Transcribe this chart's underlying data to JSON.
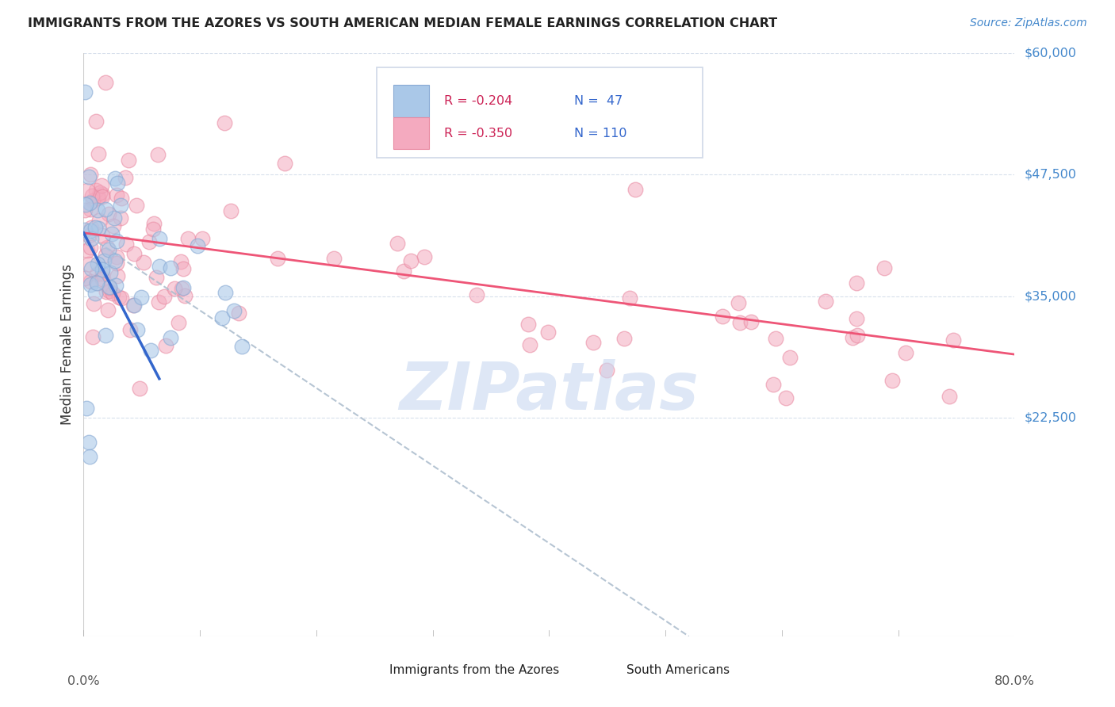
{
  "title": "IMMIGRANTS FROM THE AZORES VS SOUTH AMERICAN MEDIAN FEMALE EARNINGS CORRELATION CHART",
  "source": "Source: ZipAtlas.com",
  "ylabel": "Median Female Earnings",
  "yticks": [
    0,
    22500,
    35000,
    47500,
    60000
  ],
  "ytick_labels": [
    "",
    "$22,500",
    "$35,000",
    "$47,500",
    "$60,000"
  ],
  "xmin": 0.0,
  "xmax": 80.0,
  "ymin": 0,
  "ymax": 60000,
  "azores_fill": "#aac8e8",
  "azores_edge": "#88aad4",
  "south_fill": "#f4aabf",
  "south_edge": "#e888a0",
  "grid_color": "#d8e0ec",
  "trend_blue": "#3366cc",
  "trend_pink": "#ee5577",
  "trend_gray": "#aabbcc",
  "title_color": "#222222",
  "axis_label_color": "#4488cc",
  "watermark_text": "ZIPatlas",
  "watermark_color": "#c8d8f0",
  "legend_r1": "R = -0.204",
  "legend_n1": "N =  47",
  "legend_r2": "R = -0.350",
  "legend_n2": "N = 110",
  "legend_r_color": "#cc2255",
  "legend_n_color": "#3366cc",
  "bottom_label1": "Immigrants from the Azores",
  "bottom_label2": "South Americans",
  "blue_trend_x": [
    0.0,
    6.5
  ],
  "blue_trend_y": [
    41500,
    26500
  ],
  "pink_trend_x": [
    0.0,
    80.0
  ],
  "pink_trend_y": [
    41500,
    29000
  ],
  "gray_trend_x": [
    0.0,
    52.0
  ],
  "gray_trend_y": [
    41500,
    0
  ]
}
